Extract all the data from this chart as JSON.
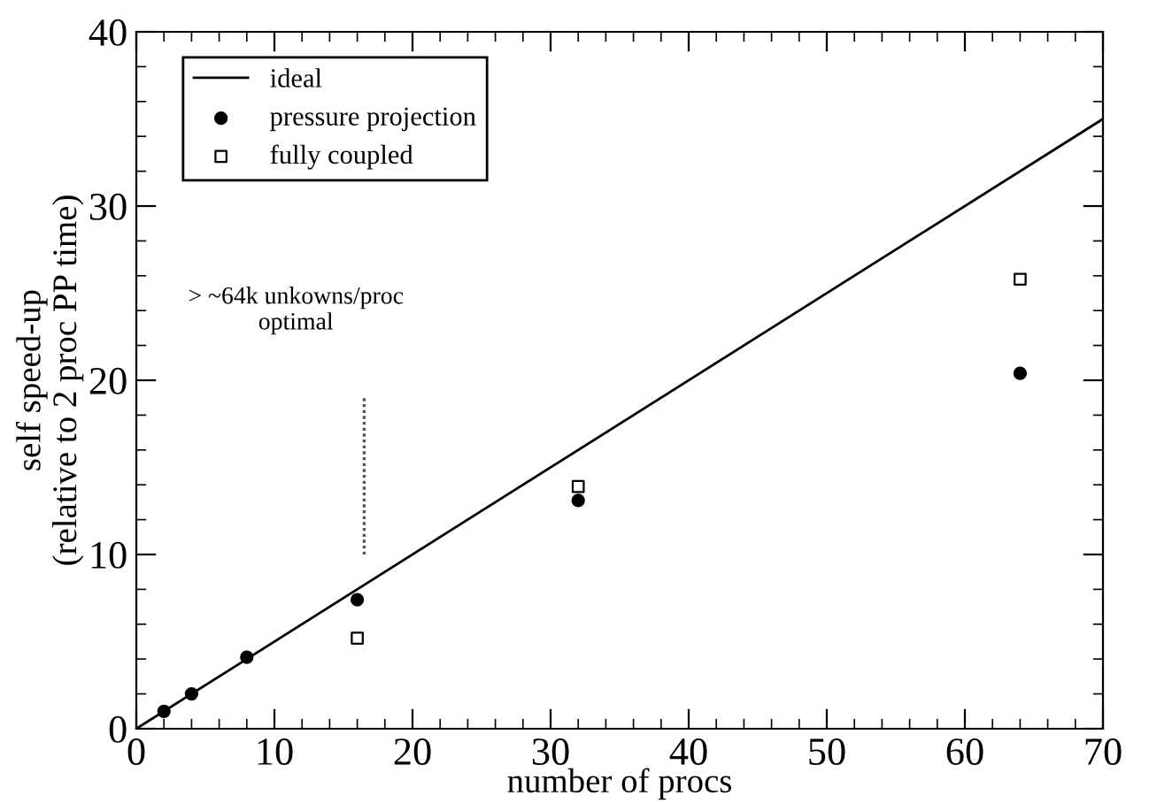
{
  "chart_data": {
    "type": "scatter",
    "xlabel": "number of procs",
    "ylabel": "self speed-up\n(relative to 2 proc PP time)",
    "xlim": [
      0,
      70
    ],
    "ylim": [
      0,
      40
    ],
    "xticks": [
      0,
      10,
      20,
      30,
      40,
      50,
      60,
      70
    ],
    "yticks": [
      0,
      10,
      20,
      30,
      40
    ],
    "grid": false,
    "legend": "top left",
    "series": [
      {
        "name": "ideal",
        "type": "line",
        "color": "#000000",
        "marker": "none",
        "line_style": "solid",
        "x": [
          0,
          70
        ],
        "values": [
          0,
          35
        ]
      },
      {
        "name": "pressure projection",
        "color": "#000000",
        "marker": "circle",
        "x": [
          2,
          4,
          8,
          16,
          32,
          64
        ],
        "values": [
          1.0,
          2.0,
          4.1,
          7.4,
          13.1,
          20.4
        ]
      },
      {
        "name": "fully coupled",
        "color": "#000000",
        "marker": "square",
        "x": [
          16,
          32,
          64
        ],
        "values": [
          5.2,
          13.9,
          25.8
        ]
      },
      {
        "type": "line",
        "color": "#555555",
        "marker": "none",
        "line_style": "dotted",
        "x": [
          16.5,
          16.5
        ],
        "values": [
          10,
          19
        ]
      }
    ],
    "annotations": [
      "> ~64k unkowns/proc\noptimal"
    ]
  }
}
